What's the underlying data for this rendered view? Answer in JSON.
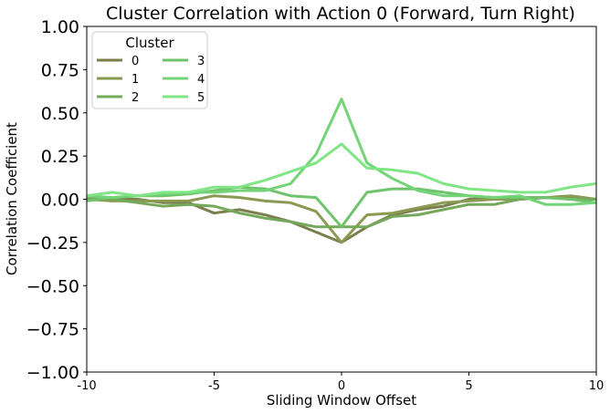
{
  "chart_data": {
    "type": "line",
    "title": "Cluster Correlation with Action 0 (Forward, Turn Right)",
    "xlabel": "Sliding Window Offset",
    "ylabel": "Correlation Coefficient",
    "xlim": [
      -10,
      10
    ],
    "ylim": [
      -1.0,
      1.0
    ],
    "xticks": [
      -10,
      -5,
      0,
      5,
      10
    ],
    "xtick_labels": [
      "-10",
      "-5",
      "0",
      "5",
      "10"
    ],
    "yticks": [
      -1.0,
      -0.75,
      -0.5,
      -0.25,
      0.0,
      0.25,
      0.5,
      0.75,
      1.0
    ],
    "ytick_labels": [
      "−1.00",
      "−0.75",
      "−0.50",
      "−0.25",
      "0.00",
      "0.25",
      "0.50",
      "0.75",
      "1.00"
    ],
    "grid": false,
    "legend": {
      "title": "Cluster",
      "position": "top-left",
      "columns": 2
    },
    "x": [
      -10,
      -9,
      -8,
      -7,
      -6,
      -5,
      -4,
      -3,
      -2,
      -1,
      0,
      1,
      2,
      3,
      4,
      5,
      6,
      7,
      8,
      9,
      10
    ],
    "series": [
      {
        "name": "0",
        "color": "#7a7f4c",
        "values": [
          0.01,
          0.0,
          0.0,
          -0.02,
          -0.02,
          -0.08,
          -0.06,
          -0.09,
          -0.13,
          -0.19,
          -0.25,
          -0.16,
          -0.09,
          -0.06,
          -0.04,
          0.0,
          0.01,
          0.01,
          0.01,
          0.01,
          0.0
        ]
      },
      {
        "name": "1",
        "color": "#8b9a52",
        "values": [
          0.0,
          -0.01,
          -0.01,
          -0.01,
          -0.01,
          0.02,
          0.01,
          -0.01,
          -0.02,
          -0.07,
          -0.25,
          -0.09,
          -0.08,
          -0.05,
          -0.02,
          -0.01,
          0.0,
          0.0,
          0.01,
          0.02,
          0.0
        ]
      },
      {
        "name": "2",
        "color": "#74a85a",
        "values": [
          0.01,
          0.0,
          -0.02,
          -0.04,
          -0.03,
          -0.04,
          -0.08,
          -0.11,
          -0.13,
          -0.16,
          -0.16,
          -0.16,
          -0.1,
          -0.09,
          -0.06,
          -0.03,
          -0.03,
          0.0,
          0.01,
          0.0,
          0.0
        ]
      },
      {
        "name": "3",
        "color": "#6ec36b",
        "values": [
          -0.01,
          0.01,
          0.02,
          0.02,
          0.03,
          0.05,
          0.07,
          0.06,
          0.02,
          0.01,
          -0.16,
          0.04,
          0.06,
          0.06,
          0.04,
          0.02,
          0.01,
          0.01,
          0.01,
          0.0,
          -0.02
        ]
      },
      {
        "name": "4",
        "color": "#73d377",
        "values": [
          0.02,
          0.01,
          0.02,
          0.03,
          0.04,
          0.04,
          0.05,
          0.05,
          0.09,
          0.26,
          0.58,
          0.21,
          0.12,
          0.05,
          0.02,
          0.02,
          0.01,
          0.02,
          -0.03,
          -0.03,
          -0.02
        ]
      },
      {
        "name": "5",
        "color": "#7fe585",
        "values": [
          0.02,
          0.04,
          0.02,
          0.04,
          0.04,
          0.07,
          0.07,
          0.11,
          0.16,
          0.21,
          0.32,
          0.18,
          0.17,
          0.15,
          0.09,
          0.06,
          0.05,
          0.04,
          0.04,
          0.07,
          0.09
        ]
      }
    ]
  }
}
